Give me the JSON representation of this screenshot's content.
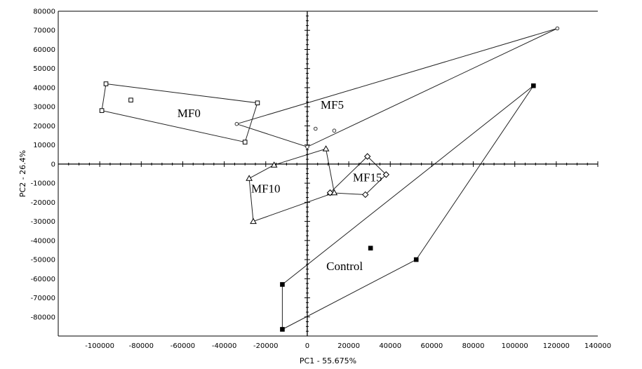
{
  "chart_data": {
    "type": "scatter",
    "title": "",
    "xlabel": "PC1 - 55.675%",
    "ylabel": "PC2 - 26.4%",
    "xlim": [
      -120000,
      140000
    ],
    "ylim": [
      -90000,
      80000
    ],
    "xticks": [
      -100000,
      -80000,
      -60000,
      -40000,
      -20000,
      0,
      20000,
      40000,
      60000,
      80000,
      100000,
      120000,
      140000
    ],
    "yticks": [
      -80000,
      -70000,
      -60000,
      -50000,
      -40000,
      -30000,
      -20000,
      -10000,
      0,
      10000,
      20000,
      30000,
      40000,
      50000,
      60000,
      70000,
      80000
    ],
    "grid": false,
    "series": [
      {
        "name": "MF0",
        "marker": "square-open",
        "points": [
          [
            -97000,
            42000
          ],
          [
            -85000,
            33500
          ],
          [
            -99000,
            28000
          ],
          [
            -24000,
            32000
          ],
          [
            -30000,
            11500
          ]
        ],
        "hull": [
          [
            -97000,
            42000
          ],
          [
            -24000,
            32000
          ],
          [
            -30000,
            11500
          ],
          [
            -99000,
            28000
          ]
        ],
        "label_at": [
          -57000,
          24500
        ]
      },
      {
        "name": "MF5",
        "marker": "circle-small",
        "points": [
          [
            -34000,
            21000
          ],
          [
            4000,
            18500
          ],
          [
            13000,
            17500
          ],
          [
            0,
            9000
          ],
          [
            120500,
            71000
          ]
        ],
        "hull": [
          [
            -34000,
            21000
          ],
          [
            120500,
            71000
          ],
          [
            0,
            9000
          ]
        ],
        "label_at": [
          12000,
          29000
        ]
      },
      {
        "name": "MF10",
        "marker": "triangle-open",
        "points": [
          [
            -16000,
            -500
          ],
          [
            -28000,
            -7500
          ],
          [
            -26000,
            -30000
          ],
          [
            9000,
            8000
          ],
          [
            11000,
            -15000
          ],
          [
            13000,
            -15000
          ]
        ],
        "hull": [
          [
            -16000,
            -500
          ],
          [
            9000,
            8000
          ],
          [
            13000,
            -15000
          ],
          [
            -26000,
            -30000
          ],
          [
            -28000,
            -7500
          ]
        ],
        "label_at": [
          -20000,
          -15000
        ]
      },
      {
        "name": "MF15",
        "marker": "diamond-open",
        "points": [
          [
            29000,
            4000
          ],
          [
            38000,
            -5500
          ],
          [
            28000,
            -16000
          ],
          [
            11000,
            -15000
          ]
        ],
        "hull": [
          [
            29000,
            4000
          ],
          [
            38000,
            -5500
          ],
          [
            28000,
            -16000
          ],
          [
            11000,
            -15000
          ]
        ],
        "label_at": [
          29000,
          -9000
        ]
      },
      {
        "name": "Control",
        "marker": "square-filled",
        "points": [
          [
            109000,
            41000
          ],
          [
            30500,
            -44000
          ],
          [
            52500,
            -50000
          ],
          [
            -12000,
            -63000
          ],
          [
            -12000,
            -86500
          ]
        ],
        "hull": [
          [
            109000,
            41000
          ],
          [
            52500,
            -50000
          ],
          [
            -12000,
            -86500
          ],
          [
            -12000,
            -63000
          ]
        ],
        "label_at": [
          18000,
          -55500
        ]
      }
    ]
  }
}
